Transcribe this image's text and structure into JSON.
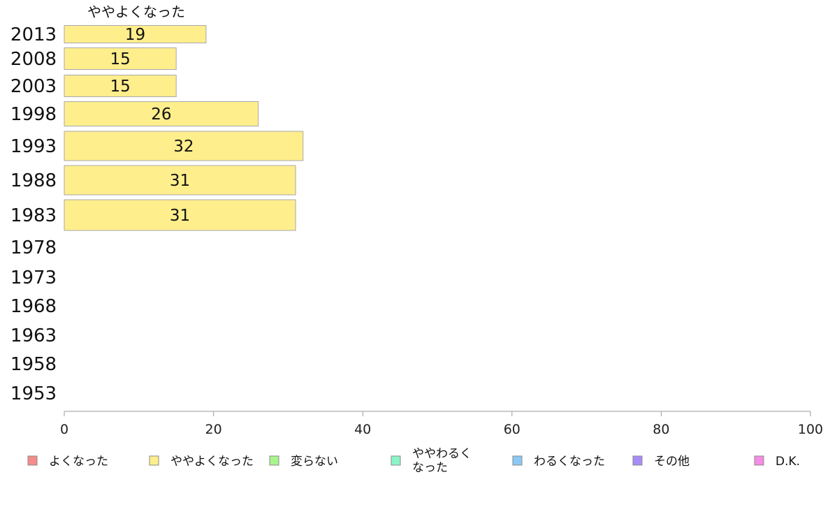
{
  "chart_data": {
    "type": "bar",
    "orientation": "horizontal",
    "series_title": "ややよくなった",
    "categories": [
      "2013",
      "2008",
      "2003",
      "1998",
      "1993",
      "1988",
      "1983",
      "1978",
      "1973",
      "1968",
      "1963",
      "1958",
      "1953"
    ],
    "series": [
      {
        "name": "ややよくなった",
        "color": "#ffee8c",
        "values": [
          19,
          15,
          15,
          26,
          32,
          31,
          31,
          null,
          null,
          null,
          null,
          null,
          null
        ],
        "labels": [
          "19",
          "15",
          "15",
          "26",
          "32",
          "31",
          "31",
          "",
          "",
          "",
          "",
          "",
          ""
        ]
      }
    ],
    "xlim": [
      0,
      100
    ],
    "xticks": [
      "0",
      "20",
      "40",
      "60",
      "80",
      "100"
    ],
    "legend": {
      "placement": "bottom",
      "items": [
        {
          "label": "よくなった",
          "color": "#f58c8c"
        },
        {
          "label": "ややよくなった",
          "color": "#ffee8c"
        },
        {
          "label": "変らない",
          "color": "#a8f58c"
        },
        {
          "label": "ややわるく\nなった",
          "color": "#8cf5c8"
        },
        {
          "label": "わるくなった",
          "color": "#8cc8f5"
        },
        {
          "label": "その他",
          "color": "#a88cf5"
        },
        {
          "label": "D.K.",
          "color": "#f58ce6"
        }
      ]
    }
  }
}
